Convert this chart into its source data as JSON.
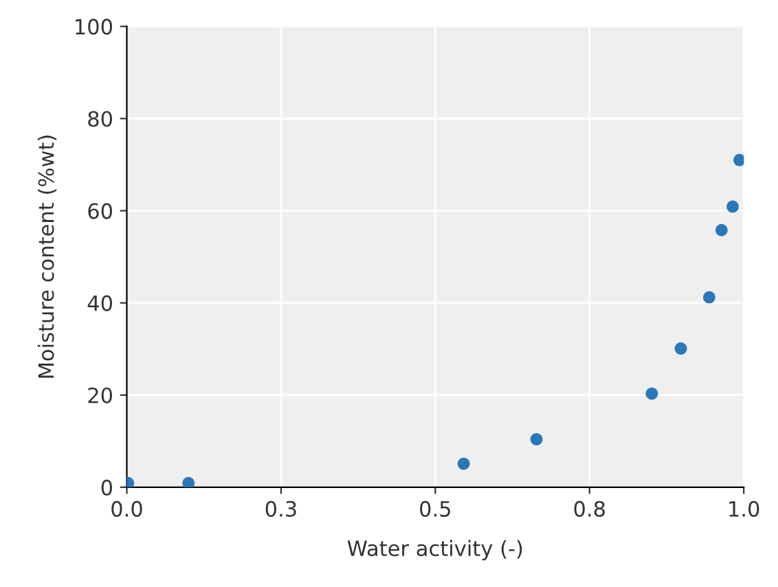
{
  "chart_data": {
    "type": "scatter",
    "xlabel": "Water activity (-)",
    "ylabel": "Moisture content (%wt)",
    "x": [
      0.002,
      0.1,
      0.546,
      0.664,
      0.851,
      0.898,
      0.944,
      0.964,
      0.982,
      0.993
    ],
    "values": [
      0.9,
      0.9,
      5.1,
      10.4,
      20.3,
      30.1,
      41.2,
      55.8,
      60.9,
      71.0
    ],
    "color": "#2a78b8",
    "marker": "circle",
    "xlim": [
      0,
      1
    ],
    "xticks": [
      {
        "value": 0,
        "label": "0.0"
      },
      {
        "value": 0.25,
        "label": "0.3"
      },
      {
        "value": 0.5,
        "label": "0.5"
      },
      {
        "value": 0.75,
        "label": "0.8"
      },
      {
        "value": 1,
        "label": "1.0"
      }
    ],
    "ylim": [
      0,
      100
    ],
    "yticks": [
      0,
      20,
      40,
      60,
      80,
      100
    ],
    "grid": true
  }
}
